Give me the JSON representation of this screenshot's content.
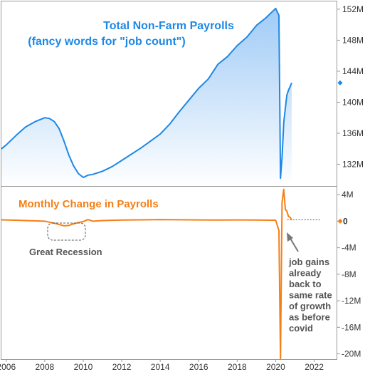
{
  "chart_data": [
    {
      "type": "area",
      "title": "Total Non-Farm Payrolls",
      "subtitle": "(fancy words for \"job count\")",
      "xlabel": "",
      "ylabel": "",
      "x_ticks": [
        "2006",
        "2008",
        "2010",
        "2012",
        "2014",
        "2016",
        "2018",
        "2020",
        "2022"
      ],
      "y_ticks": [
        "132M",
        "136M",
        "140M",
        "144M",
        "148M",
        "152M"
      ],
      "xlim": [
        2005.75,
        2023.2
      ],
      "ylim": [
        129.2,
        153.0
      ],
      "current_value_marker": 142.5,
      "series": [
        {
          "color": "#1e88e5",
          "points": [
            [
              2005.75,
              134.0
            ],
            [
              2006.0,
              134.5
            ],
            [
              2006.5,
              135.7
            ],
            [
              2007.0,
              136.8
            ],
            [
              2007.5,
              137.5
            ],
            [
              2008.0,
              138.0
            ],
            [
              2008.25,
              137.9
            ],
            [
              2008.5,
              137.5
            ],
            [
              2008.75,
              136.6
            ],
            [
              2009.0,
              135.0
            ],
            [
              2009.25,
              133.2
            ],
            [
              2009.5,
              131.8
            ],
            [
              2009.75,
              130.8
            ],
            [
              2010.0,
              130.3
            ],
            [
              2010.25,
              130.6
            ],
            [
              2010.5,
              130.7
            ],
            [
              2011.0,
              131.1
            ],
            [
              2011.5,
              131.7
            ],
            [
              2012.0,
              132.5
            ],
            [
              2012.5,
              133.3
            ],
            [
              2013.0,
              134.1
            ],
            [
              2013.5,
              135.0
            ],
            [
              2014.0,
              135.9
            ],
            [
              2014.5,
              137.2
            ],
            [
              2015.0,
              138.8
            ],
            [
              2015.5,
              140.3
            ],
            [
              2016.0,
              141.8
            ],
            [
              2016.5,
              143.0
            ],
            [
              2017.0,
              144.9
            ],
            [
              2017.5,
              145.9
            ],
            [
              2018.0,
              147.3
            ],
            [
              2018.5,
              148.4
            ],
            [
              2019.0,
              149.9
            ],
            [
              2019.5,
              150.9
            ],
            [
              2020.0,
              152.1
            ],
            [
              2020.17,
              151.2
            ],
            [
              2020.25,
              130.2
            ],
            [
              2020.33,
              132.9
            ],
            [
              2020.42,
              137.4
            ],
            [
              2020.5,
              139.2
            ],
            [
              2020.58,
              140.9
            ],
            [
              2020.67,
              141.6
            ],
            [
              2020.75,
              142.0
            ],
            [
              2020.83,
              142.5
            ]
          ]
        }
      ]
    },
    {
      "type": "line",
      "title": "Monthly Change in Payrolls",
      "xlabel": "",
      "ylabel": "",
      "y_ticks": [
        "4M",
        "0",
        "-4M",
        "-8M",
        "-12M",
        "-16M",
        "-20M"
      ],
      "ylim": [
        -20.8,
        5.2
      ],
      "current_value_marker": 0,
      "reference_line_value": 0.2,
      "series": [
        {
          "color": "#f57f17",
          "points": [
            [
              2005.75,
              0.2
            ],
            [
              2006.5,
              0.15
            ],
            [
              2007.0,
              0.1
            ],
            [
              2007.5,
              0.05
            ],
            [
              2008.0,
              0.0
            ],
            [
              2008.25,
              -0.15
            ],
            [
              2008.5,
              -0.3
            ],
            [
              2008.75,
              -0.5
            ],
            [
              2009.0,
              -0.7
            ],
            [
              2009.25,
              -0.65
            ],
            [
              2009.5,
              -0.4
            ],
            [
              2009.75,
              -0.2
            ],
            [
              2010.0,
              -0.05
            ],
            [
              2010.25,
              0.25
            ],
            [
              2010.5,
              0.0
            ],
            [
              2011.0,
              0.1
            ],
            [
              2012.0,
              0.18
            ],
            [
              2013.0,
              0.2
            ],
            [
              2014.0,
              0.25
            ],
            [
              2015.0,
              0.22
            ],
            [
              2016.0,
              0.19
            ],
            [
              2017.0,
              0.17
            ],
            [
              2018.0,
              0.19
            ],
            [
              2019.0,
              0.17
            ],
            [
              2020.0,
              0.15
            ],
            [
              2020.17,
              -1.4
            ],
            [
              2020.25,
              -20.7
            ],
            [
              2020.33,
              2.8
            ],
            [
              2020.42,
              4.8
            ],
            [
              2020.5,
              1.8
            ],
            [
              2020.58,
              1.5
            ],
            [
              2020.67,
              0.7
            ],
            [
              2020.75,
              0.6
            ],
            [
              2020.83,
              0.2
            ]
          ]
        }
      ]
    }
  ],
  "annotations": {
    "recession": "Great Recession",
    "job_gains": [
      "job gains",
      "already",
      "back to",
      "same rate",
      "of growth",
      "as before",
      "covid"
    ]
  }
}
